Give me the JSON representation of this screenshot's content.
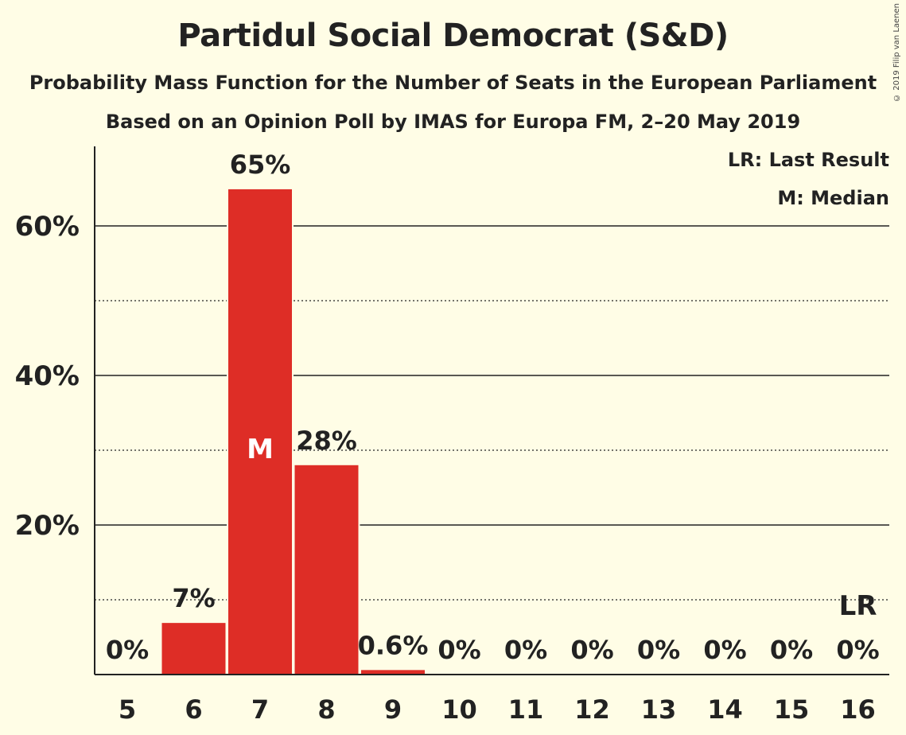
{
  "header": {
    "title": "Partidul Social Democrat (S&D)",
    "subtitle": "Probability Mass Function for the Number of Seats in the European Parliament",
    "source": "Based on an Opinion Poll by IMAS for Europa FM, 2–20 May 2019",
    "copyright": "© 2019 Filip van Laenen"
  },
  "legend": {
    "last_result": "LR: Last Result",
    "median": "M: Median"
  },
  "colors": {
    "bar": "#de2d26",
    "background": "#fffde6",
    "text": "#222222"
  },
  "chart_data": {
    "type": "bar",
    "categories": [
      "5",
      "6",
      "7",
      "8",
      "9",
      "10",
      "11",
      "12",
      "13",
      "14",
      "15",
      "16"
    ],
    "values": [
      0,
      6.9,
      64.9,
      28.0,
      0.6,
      0,
      0,
      0,
      0,
      0,
      0,
      0
    ],
    "data_labels": [
      "0%",
      "7%",
      "65%",
      "28%",
      "0.6%",
      "0%",
      "0%",
      "0%",
      "0%",
      "0%",
      "0%",
      "0%"
    ],
    "y_ticks": [
      {
        "value": 20,
        "label": "20%"
      },
      {
        "value": 40,
        "label": "40%"
      },
      {
        "value": 60,
        "label": "60%"
      }
    ],
    "minor_gridlines": [
      10,
      30,
      50
    ],
    "ylim": [
      0,
      70
    ],
    "median_category": "7",
    "median_marker": "M",
    "last_result_category": "16",
    "last_result_marker": "LR",
    "legend_position": "top-right",
    "grid": true
  }
}
